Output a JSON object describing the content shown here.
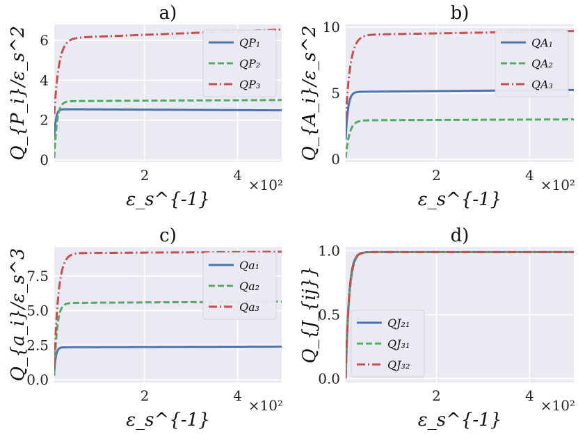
{
  "colors": {
    "blue": "#4c72b0",
    "green": "#55a868",
    "red": "#c44e52"
  },
  "chart_data": [
    {
      "type": "line",
      "title": "a)",
      "xlabel": "ε_s^{-1}",
      "ylabel": "Q_{P_i}/ε_s^2",
      "xlim": [
        0.05,
        4.95
      ],
      "ylim": [
        -0.1,
        6.8
      ],
      "xticks": [
        2,
        4
      ],
      "xtick_labels": [
        "2",
        "4"
      ],
      "yticks": [
        0,
        2,
        4,
        6
      ],
      "ytick_labels": [
        "0",
        "2",
        "4",
        "6"
      ],
      "x_multiplier": "×10²",
      "legend_position": "upper-right",
      "series": [
        {
          "name": "Q_{P₁}",
          "style": "solid",
          "color": "blue",
          "plateau": 2.55,
          "start": 1.1,
          "tau": 0.035,
          "drift": -0.012
        },
        {
          "name": "Q_{P₂}",
          "style": "dashed",
          "color": "green",
          "plateau": 2.95,
          "start": 0.1,
          "tau": 0.06,
          "drift": 0.012
        },
        {
          "name": "Q_{P₃}",
          "style": "dashdot",
          "color": "red",
          "plateau": 6.1,
          "start": 2.3,
          "tau": 0.1,
          "drift": 0.09
        }
      ]
    },
    {
      "type": "line",
      "title": "b)",
      "xlabel": "ε_s^{-1}",
      "ylabel": "Q_{A_i}/ε_s^2",
      "xlim": [
        0.05,
        4.95
      ],
      "ylim": [
        -0.2,
        10.2
      ],
      "xticks": [
        2,
        4
      ],
      "xtick_labels": [
        "2",
        "4"
      ],
      "yticks": [
        0,
        5,
        10
      ],
      "ytick_labels": [
        "0",
        "5",
        "10"
      ],
      "x_multiplier": "×10²",
      "legend_position": "upper-right",
      "series": [
        {
          "name": "Q_{A₁}",
          "style": "solid",
          "color": "blue",
          "plateau": 5.1,
          "start": 1.5,
          "tau": 0.05,
          "drift": 0.03
        },
        {
          "name": "Q_{A₂}",
          "style": "dashed",
          "color": "green",
          "plateau": 2.95,
          "start": 0.1,
          "tau": 0.08,
          "drift": 0.015
        },
        {
          "name": "Q_{A₃}",
          "style": "dashdot",
          "color": "red",
          "plateau": 9.4,
          "start": 3.0,
          "tau": 0.1,
          "drift": 0.06
        }
      ]
    },
    {
      "type": "line",
      "title": "c)",
      "xlabel": "ε_s^{-1}",
      "ylabel": "Q_{a_i}/ε_s^3",
      "xlim": [
        0.05,
        4.95
      ],
      "ylim": [
        -0.2,
        9.6
      ],
      "xticks": [
        2,
        4
      ],
      "xtick_labels": [
        "2",
        "4"
      ],
      "yticks": [
        0,
        2.5,
        5,
        7.5
      ],
      "ytick_labels": [
        "0.0",
        "2.5",
        "5.0",
        "7.5"
      ],
      "x_multiplier": "×10²",
      "legend_position": "upper-right",
      "series": [
        {
          "name": "Q_{a₁}",
          "style": "solid",
          "color": "blue",
          "plateau": 2.35,
          "start": 0.5,
          "tau": 0.035,
          "drift": 0.01
        },
        {
          "name": "Q_{a₂}",
          "style": "dashed",
          "color": "green",
          "plateau": 5.55,
          "start": 0.3,
          "tau": 0.06,
          "drift": 0.02
        },
        {
          "name": "Q_{a₃}",
          "style": "dashdot",
          "color": "red",
          "plateau": 9.15,
          "start": 1.0,
          "tau": 0.09,
          "drift": 0.02
        }
      ]
    },
    {
      "type": "line",
      "title": "d)",
      "xlabel": "ε_s^{-1}",
      "ylabel": "Q_{J_{ij}}",
      "xlim": [
        0.05,
        4.95
      ],
      "ylim": [
        -0.03,
        1.03
      ],
      "xticks": [
        2,
        4
      ],
      "xtick_labels": [
        "2",
        "4"
      ],
      "yticks": [
        0,
        0.5,
        1
      ],
      "ytick_labels": [
        "0.0",
        "0.5",
        "1.0"
      ],
      "x_multiplier": "×10²",
      "legend_position": "lower-left",
      "series": [
        {
          "name": "Q_{J₂₁}",
          "style": "solid",
          "color": "blue",
          "plateau": 0.99,
          "start": 0.0,
          "tau": 0.07,
          "drift": 0.0
        },
        {
          "name": "Q_{J₃₁}",
          "style": "dashed",
          "color": "green",
          "plateau": 0.99,
          "start": 0.0,
          "tau": 0.075,
          "drift": 0.0
        },
        {
          "name": "Q_{J₃₂}",
          "style": "dashdot",
          "color": "red",
          "plateau": 0.99,
          "start": 0.0,
          "tau": 0.072,
          "drift": 0.0
        }
      ]
    }
  ]
}
